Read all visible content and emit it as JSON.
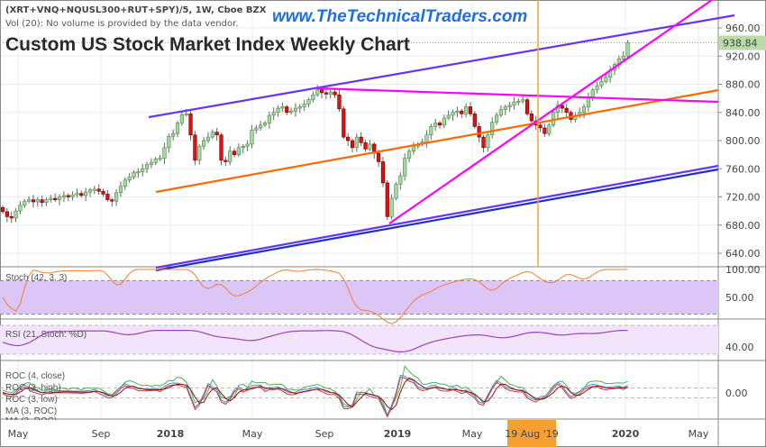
{
  "header": {
    "symbol_line": "(XRT+VNQ+NQUSL300+RUT+SPY)/5, 1W, Cboe BZX",
    "volume_note": "Vol (20): No volume is provided by the data vendor.",
    "title": "Custom US Stock Market Index Weekly Chart",
    "website": "www.TheTechnicalTraders.com"
  },
  "chart_data": {
    "type": "candlestick",
    "title": "Custom US Stock Market Index Weekly Chart",
    "interval": "1W",
    "last_price": "938.84",
    "closes": [
      699,
      692,
      690,
      700,
      708,
      714,
      716,
      713,
      716,
      712,
      716,
      718,
      716,
      720,
      722,
      720,
      723,
      725,
      722,
      727,
      730,
      731,
      728,
      724,
      716,
      714,
      726,
      735,
      744,
      748,
      755,
      756,
      760,
      766,
      769,
      774,
      775,
      790,
      806,
      810,
      825,
      837,
      838,
      808,
      772,
      792,
      800,
      805,
      812,
      808,
      772,
      770,
      785,
      780,
      790,
      792,
      795,
      815,
      818,
      822,
      825,
      836,
      840,
      846,
      848,
      840,
      842,
      846,
      848,
      852,
      858,
      865,
      872,
      868,
      866,
      869,
      865,
      845,
      805,
      800,
      790,
      805,
      797,
      788,
      795,
      782,
      770,
      740,
      692,
      718,
      738,
      750,
      775,
      785,
      792,
      795,
      798,
      808,
      820,
      825,
      822,
      832,
      836,
      840,
      842,
      838,
      848,
      838,
      820,
      805,
      790,
      808,
      826,
      836,
      844,
      848,
      850,
      855,
      856,
      858,
      838,
      828,
      822,
      818,
      810,
      822,
      840,
      850,
      846,
      840,
      830,
      835,
      840,
      848,
      862,
      872,
      878,
      884,
      890,
      900,
      908,
      916,
      920,
      939
    ],
    "ylim": [
      620,
      990
    ],
    "price_ticks": [
      "960.00",
      "920.00",
      "880.00",
      "840.00",
      "800.00",
      "760.00",
      "720.00",
      "680.00",
      "640.00"
    ],
    "x_tick_labels": [
      "May",
      "Sep",
      "2018",
      "May",
      "Sep",
      "2019",
      "May",
      "2020",
      "May"
    ],
    "highlighted_date": "19 Aug '19",
    "grid": true,
    "colors": {
      "up": "#a5d6a7",
      "up_border": "#4e8a3e",
      "down": "#e01010",
      "down_border": "#6a0000",
      "channel": "#6633ff",
      "support": "#1a2fd6",
      "orange_line": "#ff6a00",
      "magenta": "#ff00ff",
      "vertical_marker": "#f5a030",
      "last_price_bg": "#b7dca8"
    },
    "indicators": [
      {
        "name": "Stoch (42, 3, 3)",
        "ticks": [
          "100.00",
          "50.00"
        ],
        "color": "#f08030",
        "band": "#dcc6f8"
      },
      {
        "name": "RSI (21, Stoch: %D)",
        "ticks": [
          "40.00"
        ],
        "color": "#a040c0",
        "band": "#f1e4fb"
      },
      {
        "name": "ROC",
        "legend": [
          "ROC (4, close)",
          "ROC (3, high)",
          "ROC (3, low)",
          "MA (3, ROC)",
          "MA (3, ROC)"
        ],
        "ticks": [
          "0.00"
        ],
        "colors": [
          "#4caf50",
          "#3b8fd8",
          "#e03030",
          "#8a1010"
        ]
      }
    ]
  }
}
